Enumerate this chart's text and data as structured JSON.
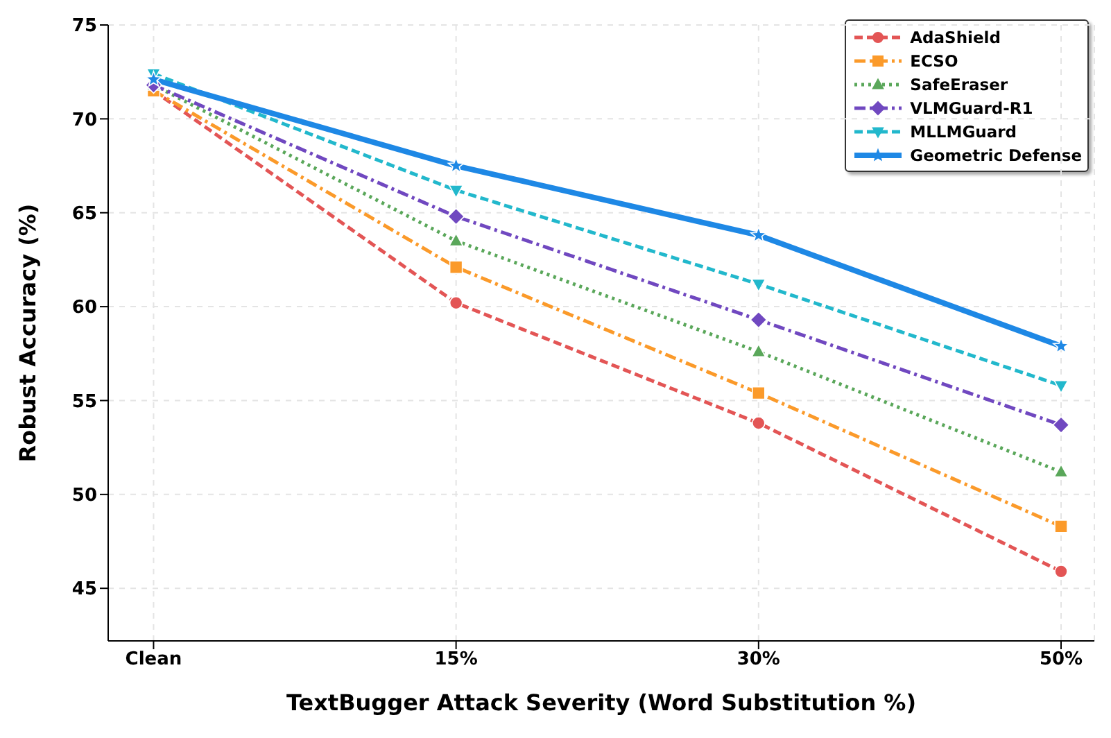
{
  "chart_data": {
    "type": "line",
    "xlabel": "TextBugger Attack Severity (Word Substitution %)",
    "ylabel": "Robust Accuracy (%)",
    "categories": [
      "Clean",
      "15%",
      "30%",
      "50%"
    ],
    "ylim": [
      42.2,
      75
    ],
    "yticks": [
      45,
      50,
      55,
      60,
      65,
      70,
      75
    ],
    "grid": true,
    "legend": "top right",
    "series": [
      {
        "name": "AdaShield",
        "color": "#e35555",
        "values": [
          71.5,
          60.2,
          53.8,
          45.9
        ],
        "marker": "circle",
        "line_style": "dashed"
      },
      {
        "name": "ECSO",
        "color": "#fb9a2a",
        "values": [
          71.5,
          62.1,
          55.4,
          48.3
        ],
        "marker": "square",
        "line_style": "dashdot"
      },
      {
        "name": "SafeEraser",
        "color": "#5aa75a",
        "values": [
          71.8,
          63.5,
          57.6,
          51.2
        ],
        "marker": "triangle",
        "line_style": "dotted"
      },
      {
        "name": "VLMGuard-R1",
        "color": "#7048c0",
        "values": [
          71.8,
          64.8,
          59.3,
          53.7
        ],
        "marker": "diamond",
        "line_style": "dashdot"
      },
      {
        "name": "MLLMGuard",
        "color": "#22b8cc",
        "values": [
          72.4,
          66.2,
          61.2,
          55.8
        ],
        "marker": "triangle_down",
        "line_style": "dashed"
      },
      {
        "name": "Geometric Defense",
        "color": "#1e88e5",
        "values": [
          72.1,
          67.5,
          63.8,
          57.9
        ],
        "marker": "star",
        "line_style": "solid"
      }
    ]
  }
}
